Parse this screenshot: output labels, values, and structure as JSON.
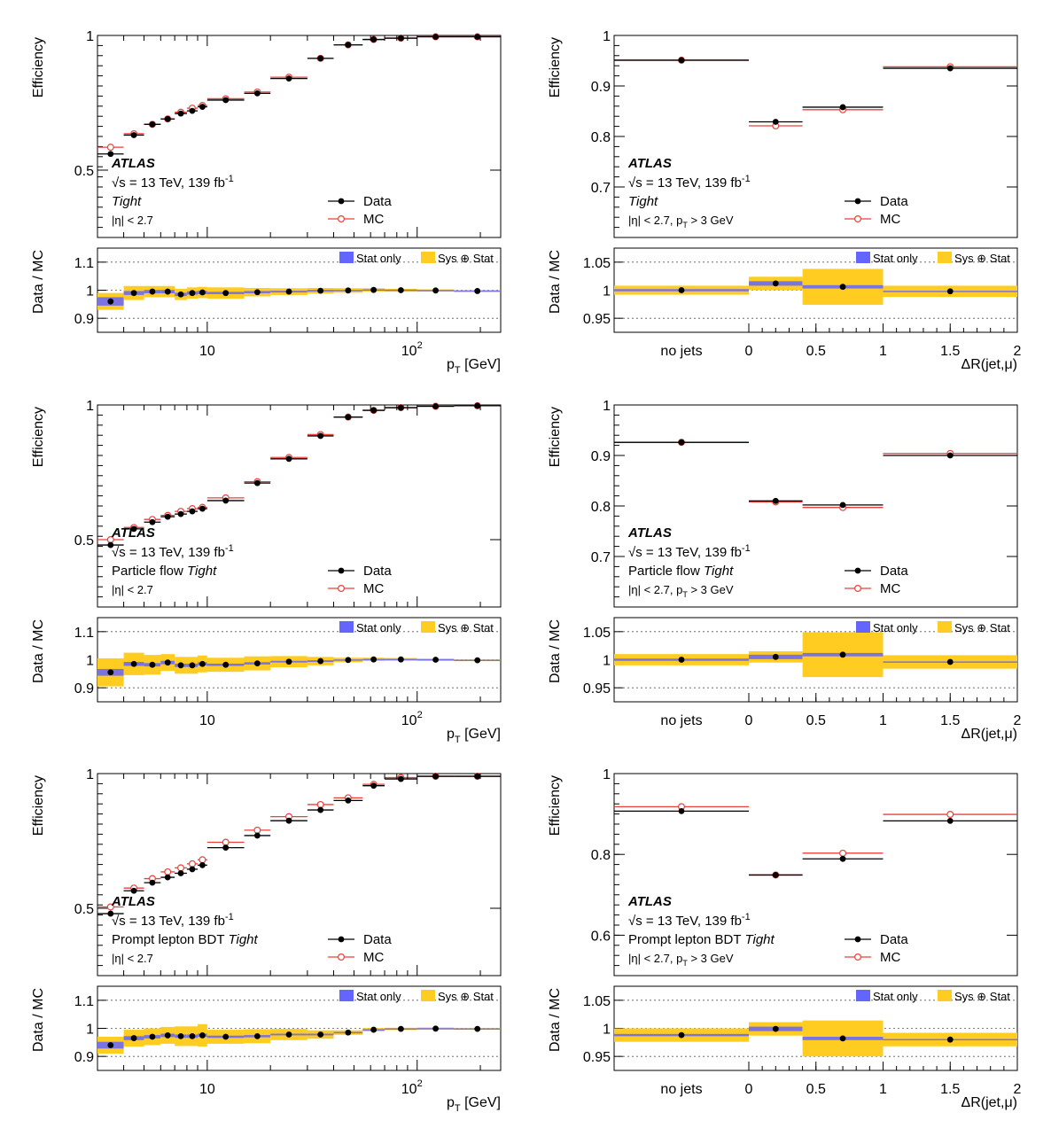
{
  "common": {
    "eff_label": "Efficiency",
    "ratio_label": "Data / MC",
    "legend_data": "Data",
    "legend_mc": "MC",
    "band_stat": "Stat only",
    "band_sys": "Sys ⊕ Stat",
    "atlas": "ATLAS",
    "energy": "√s = 13 TeV, 139 fb",
    "energy_sup": "-1",
    "eta_cut": "|η| < 2.7",
    "eta_pt_cut": "|η| < 2.7, p",
    "eta_pt_sub": "T",
    "eta_pt_tail": " > 3 GeV",
    "pt_xlabel_main": "p",
    "pt_xlabel_sub": "T",
    "pt_xlabel_tail": " [GeV]",
    "dr_xlabel": "ΔR(jet,μ)",
    "dr_ticks": [
      "no jets",
      "0",
      "0.5",
      "1",
      "1.5",
      "2"
    ],
    "pt_ticks": [
      "10",
      "10"
    ],
    "pt_tick_sup": "2",
    "colors": {
      "data": "#000000",
      "mc": "#e8413b",
      "stat": "#6464ff",
      "sys": "#ffcc22"
    }
  },
  "rows": [
    {
      "wp_prefix": "",
      "wp_italic": "Tight"
    },
    {
      "wp_prefix": "Particle flow ",
      "wp_italic": "Tight"
    },
    {
      "wp_prefix": "Prompt lepton BDT ",
      "wp_italic": "Tight"
    }
  ],
  "chart_data": [
    {
      "type": "scatter",
      "variable": "pt",
      "row": 0,
      "xlabel": "pT [GeV]",
      "ylabel": "Efficiency",
      "xscale": "log",
      "xlim": [
        3,
        250
      ],
      "ylim": [
        0.25,
        1.0
      ],
      "bins": [
        [
          3,
          4
        ],
        [
          4,
          5
        ],
        [
          5,
          6
        ],
        [
          6,
          7
        ],
        [
          7,
          8
        ],
        [
          8,
          9
        ],
        [
          9,
          10
        ],
        [
          10,
          15
        ],
        [
          15,
          20
        ],
        [
          20,
          30
        ],
        [
          30,
          40
        ],
        [
          40,
          55
        ],
        [
          55,
          70
        ],
        [
          70,
          100
        ],
        [
          100,
          150
        ],
        [
          150,
          250
        ]
      ],
      "data": [
        0.56,
        0.63,
        0.67,
        0.69,
        0.71,
        0.72,
        0.735,
        0.76,
        0.785,
        0.84,
        0.915,
        0.965,
        0.985,
        0.99,
        0.995,
        0.995
      ],
      "mc": [
        0.585,
        0.635,
        0.67,
        0.69,
        0.715,
        0.73,
        0.74,
        0.765,
        0.79,
        0.845,
        0.915,
        0.965,
        0.985,
        0.99,
        0.995,
        0.995
      ],
      "ratio": {
        "ylim": [
          0.85,
          1.15
        ],
        "ticks": [
          0.9,
          1.0,
          1.1
        ],
        "tick_labels": [
          "0.9",
          "1",
          "1.1"
        ],
        "values": [
          0.96,
          0.99,
          0.995,
          0.995,
          0.985,
          0.99,
          0.992,
          0.99,
          0.993,
          0.995,
          0.998,
          0.999,
          1.001,
          1.0,
          0.999,
          0.997
        ],
        "stat": [
          0.015,
          0.007,
          0.006,
          0.006,
          0.006,
          0.006,
          0.006,
          0.004,
          0.004,
          0.003,
          0.003,
          0.002,
          0.002,
          0.002,
          0.002,
          0.002
        ],
        "sys": [
          0.03,
          0.025,
          0.02,
          0.02,
          0.02,
          0.02,
          0.02,
          0.02,
          0.015,
          0.012,
          0.01,
          0.008,
          0.006,
          0.005,
          0.004,
          0.003
        ]
      },
      "eff_ticks": [
        0.5,
        1.0
      ],
      "eff_tick_labels": [
        "0.5",
        "1"
      ]
    },
    {
      "type": "scatter",
      "variable": "dr",
      "row": 0,
      "xlabel": "ΔR(jet,μ)",
      "ylabel": "Efficiency",
      "ylim": [
        0.6,
        1.0
      ],
      "bins": [
        [
          "nojets"
        ],
        [
          0,
          0.4
        ],
        [
          0.4,
          1.0
        ],
        [
          1.0,
          2.0
        ]
      ],
      "data": [
        0.951,
        0.829,
        0.858,
        0.935
      ],
      "mc": [
        0.951,
        0.821,
        0.853,
        0.938
      ],
      "ratio": {
        "ylim": [
          0.925,
          1.075
        ],
        "ticks": [
          0.95,
          1.0,
          1.05
        ],
        "tick_labels": [
          "0.95",
          "1",
          "1.05"
        ],
        "values": [
          1.0,
          1.012,
          1.006,
          0.998
        ],
        "stat": [
          0.002,
          0.004,
          0.003,
          0.001
        ],
        "sys": [
          0.008,
          0.012,
          0.032,
          0.01
        ]
      },
      "eff_ticks": [
        0.7,
        0.8,
        0.9,
        1.0
      ],
      "eff_tick_labels": [
        "0.7",
        "0.8",
        "0.9",
        "1"
      ]
    },
    {
      "type": "scatter",
      "variable": "pt",
      "row": 1,
      "xlabel": "pT [GeV]",
      "ylabel": "Efficiency",
      "xscale": "log",
      "xlim": [
        3,
        250
      ],
      "ylim": [
        0.25,
        1.0
      ],
      "bins": [
        [
          3,
          4
        ],
        [
          4,
          5
        ],
        [
          5,
          6
        ],
        [
          6,
          7
        ],
        [
          7,
          8
        ],
        [
          8,
          9
        ],
        [
          9,
          10
        ],
        [
          10,
          15
        ],
        [
          15,
          20
        ],
        [
          20,
          30
        ],
        [
          30,
          40
        ],
        [
          40,
          55
        ],
        [
          55,
          70
        ],
        [
          70,
          100
        ],
        [
          100,
          150
        ],
        [
          150,
          250
        ]
      ],
      "data": [
        0.48,
        0.54,
        0.565,
        0.585,
        0.595,
        0.605,
        0.615,
        0.645,
        0.71,
        0.8,
        0.885,
        0.955,
        0.98,
        0.99,
        0.995,
        0.997
      ],
      "mc": [
        0.5,
        0.545,
        0.575,
        0.59,
        0.605,
        0.615,
        0.62,
        0.655,
        0.715,
        0.805,
        0.89,
        0.955,
        0.98,
        0.99,
        0.995,
        0.997
      ],
      "ratio": {
        "ylim": [
          0.85,
          1.15
        ],
        "ticks": [
          0.9,
          1.0,
          1.1
        ],
        "tick_labels": [
          "0.9",
          "1",
          "1.1"
        ],
        "values": [
          0.955,
          0.985,
          0.982,
          0.99,
          0.98,
          0.98,
          0.985,
          0.982,
          0.987,
          0.993,
          0.995,
          0.999,
          1.001,
          1.001,
          1.0,
          0.998
        ],
        "stat": [
          0.012,
          0.007,
          0.006,
          0.006,
          0.006,
          0.006,
          0.006,
          0.004,
          0.004,
          0.003,
          0.003,
          0.002,
          0.002,
          0.002,
          0.002,
          0.002
        ],
        "sys": [
          0.05,
          0.04,
          0.035,
          0.03,
          0.03,
          0.03,
          0.03,
          0.025,
          0.025,
          0.02,
          0.015,
          0.008,
          0.006,
          0.005,
          0.004,
          0.003
        ]
      },
      "eff_ticks": [
        0.5,
        1.0
      ],
      "eff_tick_labels": [
        "0.5",
        "1"
      ]
    },
    {
      "type": "scatter",
      "variable": "dr",
      "row": 1,
      "xlabel": "ΔR(jet,μ)",
      "ylabel": "Efficiency",
      "ylim": [
        0.6,
        1.0
      ],
      "bins": [
        [
          "nojets"
        ],
        [
          0,
          0.4
        ],
        [
          0.4,
          1.0
        ],
        [
          1.0,
          2.0
        ]
      ],
      "data": [
        0.926,
        0.81,
        0.802,
        0.9
      ],
      "mc": [
        0.926,
        0.808,
        0.797,
        0.904
      ],
      "ratio": {
        "ylim": [
          0.925,
          1.075
        ],
        "ticks": [
          0.95,
          1.0,
          1.05
        ],
        "tick_labels": [
          "0.95",
          "1",
          "1.05"
        ],
        "values": [
          1.0,
          1.005,
          1.009,
          0.996
        ],
        "stat": [
          0.002,
          0.004,
          0.003,
          0.001
        ],
        "sys": [
          0.01,
          0.01,
          0.04,
          0.012
        ]
      },
      "eff_ticks": [
        0.7,
        0.8,
        0.9,
        1.0
      ],
      "eff_tick_labels": [
        "0.7",
        "0.8",
        "0.9",
        "1"
      ]
    },
    {
      "type": "scatter",
      "variable": "pt",
      "row": 2,
      "xlabel": "pT [GeV]",
      "ylabel": "Efficiency",
      "xscale": "log",
      "xlim": [
        3,
        250
      ],
      "ylim": [
        0.25,
        1.0
      ],
      "bins": [
        [
          3,
          4
        ],
        [
          4,
          5
        ],
        [
          5,
          6
        ],
        [
          6,
          7
        ],
        [
          7,
          8
        ],
        [
          8,
          9
        ],
        [
          9,
          10
        ],
        [
          10,
          15
        ],
        [
          15,
          20
        ],
        [
          20,
          30
        ],
        [
          30,
          40
        ],
        [
          40,
          55
        ],
        [
          55,
          70
        ],
        [
          70,
          100
        ],
        [
          100,
          150
        ],
        [
          150,
          250
        ]
      ],
      "data": [
        0.48,
        0.565,
        0.595,
        0.615,
        0.63,
        0.645,
        0.66,
        0.725,
        0.77,
        0.825,
        0.865,
        0.9,
        0.955,
        0.98,
        0.99,
        0.99
      ],
      "mc": [
        0.505,
        0.575,
        0.61,
        0.635,
        0.65,
        0.665,
        0.68,
        0.745,
        0.79,
        0.84,
        0.885,
        0.91,
        0.96,
        0.985,
        0.99,
        0.99
      ],
      "ratio": {
        "ylim": [
          0.85,
          1.15
        ],
        "ticks": [
          0.9,
          1.0,
          1.1
        ],
        "tick_labels": [
          "0.9",
          "1",
          "1.1"
        ],
        "values": [
          0.94,
          0.965,
          0.97,
          0.975,
          0.972,
          0.972,
          0.975,
          0.97,
          0.972,
          0.978,
          0.978,
          0.985,
          0.995,
          0.998,
          0.999,
          0.998
        ],
        "stat": [
          0.012,
          0.007,
          0.006,
          0.006,
          0.006,
          0.006,
          0.006,
          0.004,
          0.004,
          0.003,
          0.003,
          0.002,
          0.002,
          0.002,
          0.002,
          0.002
        ],
        "sys": [
          0.03,
          0.03,
          0.03,
          0.03,
          0.035,
          0.035,
          0.04,
          0.025,
          0.025,
          0.02,
          0.015,
          0.008,
          0.006,
          0.004,
          0.004,
          0.003
        ]
      },
      "eff_ticks": [
        0.5,
        1.0
      ],
      "eff_tick_labels": [
        "0.5",
        "1"
      ]
    },
    {
      "type": "scatter",
      "variable": "dr",
      "row": 2,
      "xlabel": "ΔR(jet,μ)",
      "ylabel": "Efficiency",
      "ylim": [
        0.5,
        1.0
      ],
      "bins": [
        [
          "nojets"
        ],
        [
          0,
          0.4
        ],
        [
          0.4,
          1.0
        ],
        [
          1.0,
          2.0
        ]
      ],
      "data": [
        0.907,
        0.749,
        0.789,
        0.883
      ],
      "mc": [
        0.918,
        0.749,
        0.803,
        0.899
      ],
      "ratio": {
        "ylim": [
          0.925,
          1.075
        ],
        "ticks": [
          0.95,
          1.0,
          1.05
        ],
        "tick_labels": [
          "0.95",
          "1",
          "1.05"
        ],
        "values": [
          0.988,
          0.999,
          0.982,
          0.98
        ],
        "stat": [
          0.002,
          0.004,
          0.003,
          0.001
        ],
        "sys": [
          0.012,
          0.012,
          0.032,
          0.012
        ]
      },
      "eff_ticks": [
        0.6,
        0.8,
        1.0
      ],
      "eff_tick_labels": [
        "0.6",
        "0.8",
        "1"
      ]
    }
  ]
}
